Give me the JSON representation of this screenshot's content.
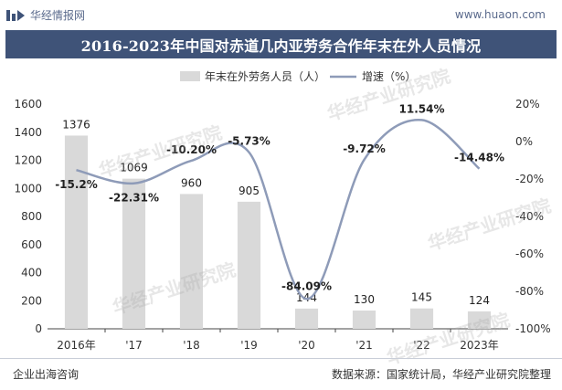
{
  "header": {
    "brand": "华经情报网",
    "url": "www.huaon.com"
  },
  "watermark": {
    "text": "华经产业研究院"
  },
  "footer": {
    "left": "企业出海咨询",
    "right": "数据来源：国家统计局，华经产业研究院整理"
  },
  "colors": {
    "title_bar": "#3f5378",
    "bar": "#d9d9d9",
    "line": "#8e9bb8"
  },
  "chart_data": {
    "type": "bar",
    "title": "2016-2023年中国对赤道几内亚劳务合作年末在外人员情况",
    "categories": [
      "2016年",
      "'17",
      "'18",
      "'19",
      "'20",
      "'21",
      "'22",
      "2023年"
    ],
    "series": [
      {
        "name": "年末在外劳务人员（人）",
        "type": "bar",
        "axis": "left",
        "values": [
          1376,
          1069,
          960,
          905,
          144,
          130,
          145,
          124
        ],
        "labels": [
          "1376",
          "1069",
          "960",
          "905",
          "144",
          "130",
          "145",
          "124"
        ]
      },
      {
        "name": "增速（%）",
        "type": "line",
        "axis": "right",
        "values": [
          -15.2,
          -22.31,
          -10.2,
          -5.73,
          -84.09,
          -9.72,
          11.54,
          -14.48
        ],
        "labels": [
          "-15.2%",
          "-22.31%",
          "-10.20%",
          "-5.73%",
          "-84.09%",
          "-9.72%",
          "11.54%",
          "-14.48%"
        ]
      }
    ],
    "y_left": {
      "min": 0,
      "max": 1600,
      "ticks": [
        0,
        200,
        400,
        600,
        800,
        1000,
        1200,
        1400,
        1600
      ]
    },
    "y_right": {
      "min": -100,
      "max": 20,
      "ticks": [
        -100,
        -80,
        -60,
        -40,
        -20,
        0,
        20
      ],
      "tick_labels": [
        "-100%",
        "-80%",
        "-60%",
        "-40%",
        "-20%",
        "0%",
        "20%"
      ]
    },
    "grid": false,
    "legend": "top"
  }
}
